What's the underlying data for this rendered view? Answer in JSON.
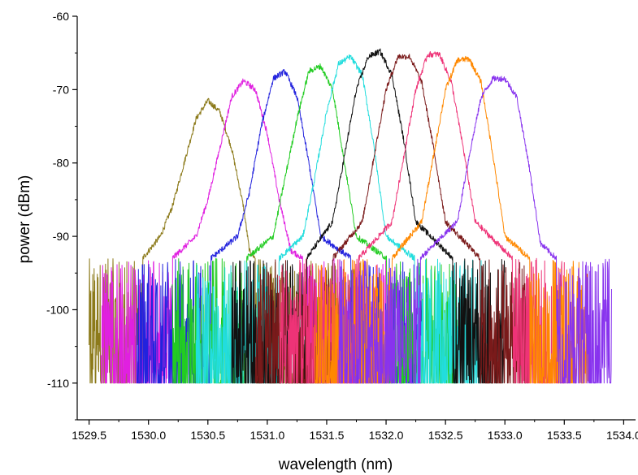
{
  "chart_data": {
    "type": "line",
    "title": "",
    "xlabel": "wavelength (nm)",
    "ylabel": "power (dBm)",
    "xlim": [
      1529.4,
      1534.1
    ],
    "ylim": [
      -115,
      -60
    ],
    "xticks": [
      1529.5,
      1530.0,
      1530.5,
      1531.0,
      1531.5,
      1532.0,
      1532.5,
      1533.0,
      1533.5,
      1534.0
    ],
    "xtick_labels": [
      "1529.5",
      "1530.0",
      "1530.5",
      "1531.0",
      "1531.5",
      "1532.0",
      "1532.5",
      "1533.0",
      "1533.5",
      "1534.0"
    ],
    "yticks": [
      -60,
      -70,
      -80,
      -90,
      -100,
      -110
    ],
    "ytick_labels": [
      "-60",
      "-70",
      "-80",
      "-90",
      "-100",
      "-110"
    ],
    "grid": false,
    "legend": "none",
    "noise_floor_range": [
      -110,
      -93
    ],
    "series": [
      {
        "color": "#8c7a1a",
        "x": [
          1529.5,
          1529.85,
          1530.1,
          1530.2,
          1530.3,
          1530.4,
          1530.5,
          1530.6,
          1530.7,
          1530.8,
          1530.85,
          1531.0,
          1531.8
        ],
        "y": [
          -100,
          -95,
          -90,
          -86,
          -80,
          -74,
          -71.5,
          -73,
          -78,
          -86,
          -92,
          -95,
          -100
        ]
      },
      {
        "color": "#e020e0",
        "x": [
          1529.6,
          1530.0,
          1530.4,
          1530.5,
          1530.6,
          1530.7,
          1530.8,
          1530.9,
          1531.0,
          1531.1,
          1531.2,
          1532.0
        ],
        "y": [
          -100,
          -96,
          -90,
          -85,
          -78,
          -71,
          -68.8,
          -70,
          -76,
          -85,
          -92,
          -100
        ]
      },
      {
        "color": "#2222dd",
        "x": [
          1529.9,
          1530.3,
          1530.75,
          1530.85,
          1530.95,
          1531.05,
          1531.15,
          1531.25,
          1531.35,
          1531.45,
          1532.3
        ],
        "y": [
          -100,
          -96,
          -90,
          -84,
          -75,
          -68.5,
          -67.5,
          -71,
          -80,
          -90,
          -100
        ]
      },
      {
        "color": "#22cc22",
        "x": [
          1530.2,
          1530.6,
          1531.05,
          1531.15,
          1531.25,
          1531.35,
          1531.45,
          1531.55,
          1531.65,
          1531.75,
          1532.6
        ],
        "y": [
          -100,
          -96,
          -90,
          -82,
          -74,
          -67.5,
          -66.8,
          -70,
          -80,
          -90,
          -100
        ]
      },
      {
        "color": "#22dddd",
        "x": [
          1530.4,
          1530.9,
          1531.3,
          1531.4,
          1531.5,
          1531.6,
          1531.7,
          1531.8,
          1531.9,
          1532.0,
          1532.8
        ],
        "y": [
          -100,
          -96,
          -90,
          -82,
          -73,
          -66.5,
          -65.5,
          -68,
          -78,
          -90,
          -100
        ]
      },
      {
        "color": "#111111",
        "x": [
          1530.7,
          1531.2,
          1531.55,
          1531.65,
          1531.75,
          1531.85,
          1531.95,
          1532.05,
          1532.15,
          1532.25,
          1533.0
        ],
        "y": [
          -100,
          -96,
          -88,
          -79,
          -70,
          -65.5,
          -64.8,
          -68,
          -77,
          -88,
          -100
        ]
      },
      {
        "color": "#7a1a1a",
        "x": [
          1530.9,
          1531.4,
          1531.8,
          1531.9,
          1532.0,
          1532.1,
          1532.2,
          1532.3,
          1532.4,
          1532.5,
          1533.2
        ],
        "y": [
          -100,
          -96,
          -88,
          -79,
          -70,
          -65.5,
          -65.5,
          -69,
          -78,
          -88,
          -100
        ]
      },
      {
        "color": "#ee3377",
        "x": [
          1531.1,
          1531.6,
          1532.05,
          1532.15,
          1532.25,
          1532.35,
          1532.45,
          1532.55,
          1532.65,
          1532.75,
          1533.5
        ],
        "y": [
          -100,
          -96,
          -88,
          -79,
          -70,
          -65.2,
          -65.2,
          -69,
          -78,
          -88,
          -100
        ]
      },
      {
        "color": "#ff8800",
        "x": [
          1531.4,
          1531.9,
          1532.3,
          1532.4,
          1532.5,
          1532.6,
          1532.7,
          1532.8,
          1532.9,
          1533.0,
          1533.7
        ],
        "y": [
          -100,
          -96,
          -88,
          -79,
          -70,
          -66,
          -65.8,
          -69,
          -79,
          -90,
          -100
        ]
      },
      {
        "color": "#8833ee",
        "x": [
          1531.6,
          1532.1,
          1532.6,
          1532.7,
          1532.8,
          1532.9,
          1533.0,
          1533.1,
          1533.2,
          1533.3,
          1533.9
        ],
        "y": [
          -100,
          -96,
          -88,
          -79,
          -71,
          -68.5,
          -68.5,
          -71,
          -80,
          -91,
          -100
        ]
      }
    ]
  }
}
